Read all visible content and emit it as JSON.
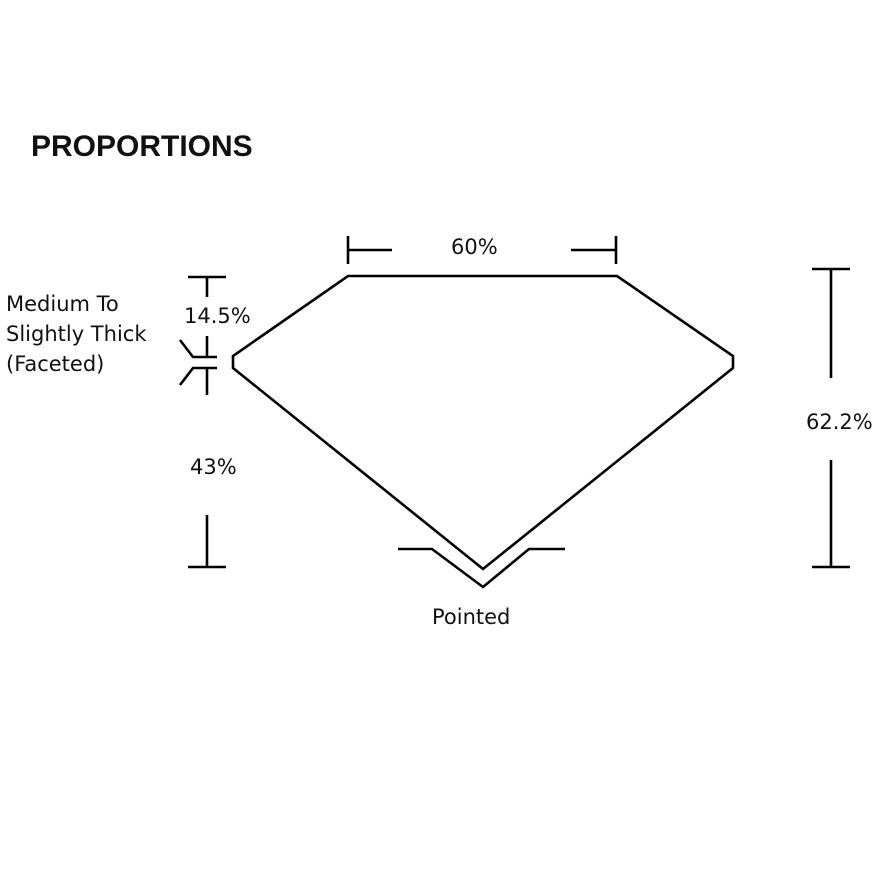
{
  "title": "PROPORTIONS",
  "labels": {
    "table": "60%",
    "crown": "14.5%",
    "girdle_line1": "Medium To",
    "girdle_line2": "Slightly Thick",
    "girdle_line3": "(Faceted)",
    "pavilion": "43%",
    "total_depth": "62.2%",
    "culet": "Pointed"
  }
}
